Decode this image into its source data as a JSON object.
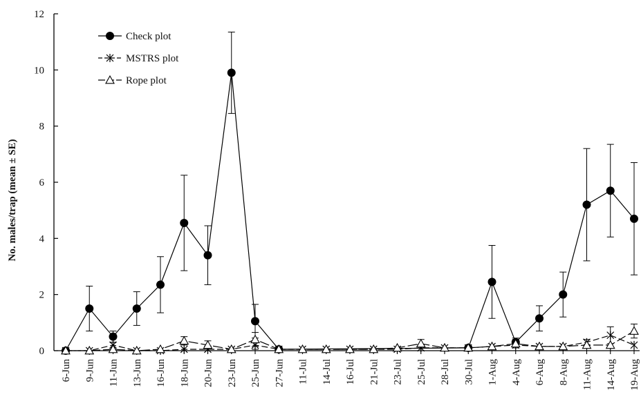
{
  "chart_data": {
    "type": "line",
    "title": "",
    "xlabel": "",
    "ylabel": "No. males/trap (mean ± SE)",
    "ylim": [
      0,
      12
    ],
    "yticks": [
      "0",
      "2",
      "4",
      "6",
      "8",
      "10",
      "12"
    ],
    "categories": [
      "6-Jun",
      "9-Jun",
      "11-Jun",
      "13-Jun",
      "16-Jun",
      "18-Jun",
      "20-Jun",
      "23-Jun",
      "25-Jun",
      "27-Jun",
      "11-Jul",
      "14-Jul",
      "16-Jul",
      "21-Jul",
      "23-Jul",
      "25-Jul",
      "28-Jul",
      "30-Jul",
      "1-Aug",
      "4-Aug",
      "6-Aug",
      "8-Aug",
      "11-Aug",
      "14-Aug",
      "19-Aug"
    ],
    "grid": false,
    "legend_position": "top-left",
    "series": [
      {
        "name": "Check plot",
        "marker": "filled-circle",
        "color": "#000000",
        "points": [
          {
            "x": "6-Jun",
            "y": 0
          },
          {
            "x": "9-Jun",
            "y": 1.5,
            "se": 0.8
          },
          {
            "x": "11-Jun",
            "y": 0.5,
            "se": 0.2
          },
          {
            "x": "13-Jun",
            "y": 1.5,
            "se": 0.6
          },
          {
            "x": "16-Jun",
            "y": 2.35,
            "se": 1.0
          },
          {
            "x": "18-Jun",
            "y": 4.55,
            "se": 1.7
          },
          {
            "x": "20-Jun",
            "y": 3.4,
            "se": 1.05
          },
          {
            "x": "23-Jun",
            "y": 9.9,
            "se": 1.45
          },
          {
            "x": "25-Jun",
            "y": 1.05,
            "se": 0.6
          },
          {
            "x": "27-Jun",
            "y": 0.05
          },
          {
            "x": "30-Jul",
            "y": 0.1
          },
          {
            "x": "1-Aug",
            "y": 2.45,
            "se": 1.3
          },
          {
            "x": "4-Aug",
            "y": 0.3,
            "se": 0.15
          },
          {
            "x": "6-Aug",
            "y": 1.15,
            "se": 0.45
          },
          {
            "x": "8-Aug",
            "y": 2.0,
            "se": 0.8
          },
          {
            "x": "11-Aug",
            "y": 5.2,
            "se": 2.0
          },
          {
            "x": "14-Aug",
            "y": 5.7,
            "se": 1.65
          },
          {
            "x": "19-Aug",
            "y": 4.7,
            "se": 2.0
          }
        ]
      },
      {
        "name": "MSTRS plot",
        "marker": "asterisk",
        "color": "#000000",
        "points": [
          {
            "x": "6-Jun",
            "y": 0
          },
          {
            "x": "9-Jun",
            "y": 0
          },
          {
            "x": "11-Jun",
            "y": 0.2,
            "se": 0.1
          },
          {
            "x": "13-Jun",
            "y": 0
          },
          {
            "x": "16-Jun",
            "y": 0
          },
          {
            "x": "18-Jun",
            "y": 0.05
          },
          {
            "x": "20-Jun",
            "y": 0.05
          },
          {
            "x": "23-Jun",
            "y": 0.05
          },
          {
            "x": "25-Jun",
            "y": 0.2,
            "se": 0.15
          },
          {
            "x": "27-Jun",
            "y": 0.05
          },
          {
            "x": "11-Jul",
            "y": 0.05
          },
          {
            "x": "14-Jul",
            "y": 0.05
          },
          {
            "x": "16-Jul",
            "y": 0.05
          },
          {
            "x": "21-Jul",
            "y": 0.05
          },
          {
            "x": "23-Jul",
            "y": 0.05
          },
          {
            "x": "25-Jul",
            "y": 0.1
          },
          {
            "x": "28-Jul",
            "y": 0.1
          },
          {
            "x": "30-Jul",
            "y": 0.1
          },
          {
            "x": "1-Aug",
            "y": 0.15
          },
          {
            "x": "4-Aug",
            "y": 0.2,
            "se": 0.1
          },
          {
            "x": "6-Aug",
            "y": 0.15
          },
          {
            "x": "8-Aug",
            "y": 0.15
          },
          {
            "x": "11-Aug",
            "y": 0.3,
            "se": 0.1
          },
          {
            "x": "14-Aug",
            "y": 0.55,
            "se": 0.3
          },
          {
            "x": "19-Aug",
            "y": 0.2
          }
        ]
      },
      {
        "name": "Rope plot",
        "marker": "open-triangle",
        "color": "#000000",
        "points": [
          {
            "x": "6-Jun",
            "y": 0
          },
          {
            "x": "9-Jun",
            "y": 0
          },
          {
            "x": "11-Jun",
            "y": 0.05
          },
          {
            "x": "13-Jun",
            "y": 0
          },
          {
            "x": "16-Jun",
            "y": 0.05
          },
          {
            "x": "18-Jun",
            "y": 0.35,
            "se": 0.15
          },
          {
            "x": "20-Jun",
            "y": 0.2,
            "se": 0.15
          },
          {
            "x": "23-Jun",
            "y": 0.05
          },
          {
            "x": "25-Jun",
            "y": 0.4,
            "se": 0.25
          },
          {
            "x": "27-Jun",
            "y": 0.05
          },
          {
            "x": "11-Jul",
            "y": 0.05
          },
          {
            "x": "14-Jul",
            "y": 0.05
          },
          {
            "x": "16-Jul",
            "y": 0.05
          },
          {
            "x": "21-Jul",
            "y": 0.05
          },
          {
            "x": "23-Jul",
            "y": 0.1
          },
          {
            "x": "25-Jul",
            "y": 0.25,
            "se": 0.15
          },
          {
            "x": "28-Jul",
            "y": 0.1
          },
          {
            "x": "30-Jul",
            "y": 0.1
          },
          {
            "x": "1-Aug",
            "y": 0.15
          },
          {
            "x": "4-Aug",
            "y": 0.25,
            "se": 0.15
          },
          {
            "x": "6-Aug",
            "y": 0.15
          },
          {
            "x": "8-Aug",
            "y": 0.15
          },
          {
            "x": "11-Aug",
            "y": 0.2
          },
          {
            "x": "14-Aug",
            "y": 0.2
          },
          {
            "x": "19-Aug",
            "y": 0.7,
            "se": 0.25
          }
        ]
      }
    ]
  }
}
